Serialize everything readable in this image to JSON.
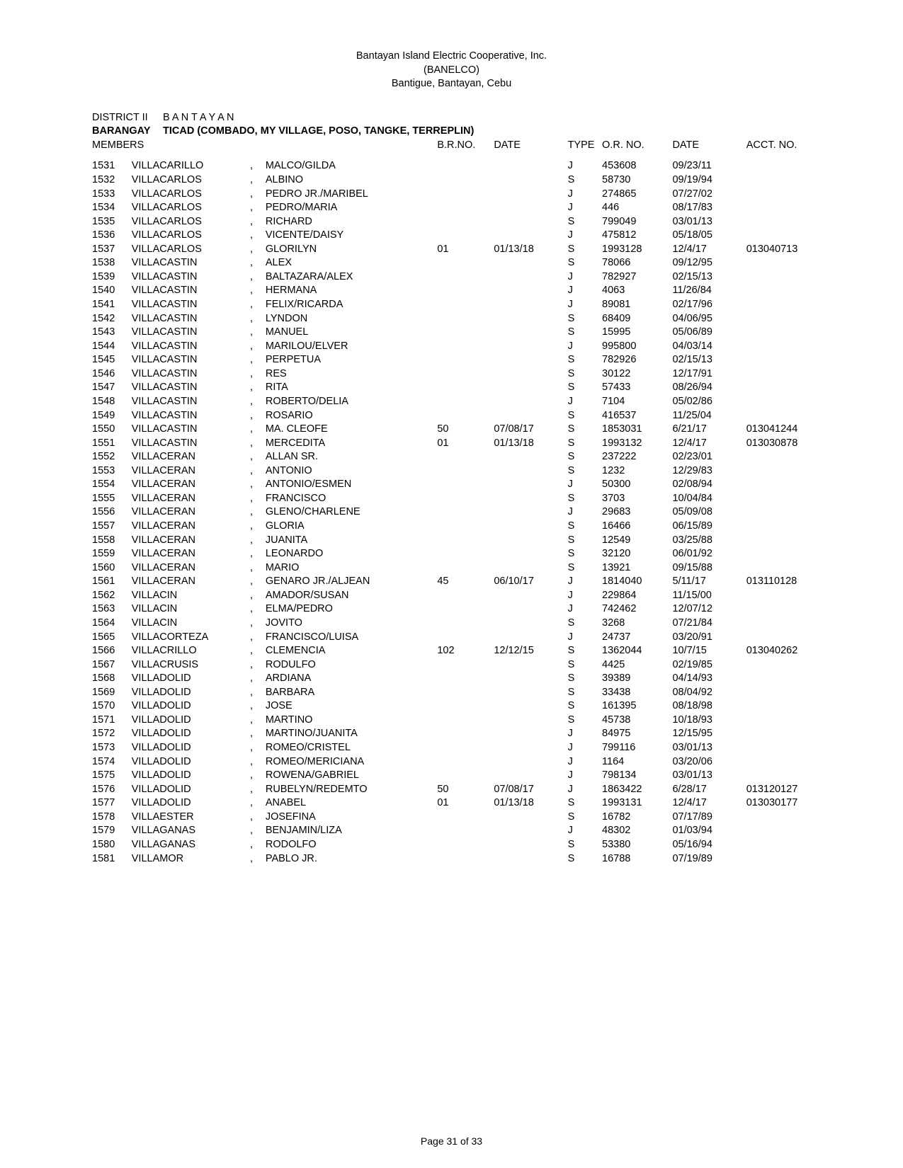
{
  "header": {
    "line1": "Bantayan Island Electric Cooperative, Inc.",
    "line2": "(BANELCO)",
    "line3": "Bantigue, Bantayan, Cebu"
  },
  "meta": {
    "district_label": "DISTRICT II",
    "district_value": "B A N T A Y A N",
    "barangay_label": "BARANGAY",
    "barangay_value": "TICAD (COMBADO, MY VILLAGE, POSO, TANGKE, TERREPLIN)",
    "members_label": "MEMBERS"
  },
  "columns": {
    "brno": "B.R.NO.",
    "date": "DATE",
    "type": "TYPE",
    "orno": "O.R. NO.",
    "date2": "DATE",
    "acct": "ACCT. NO."
  },
  "rows": [
    {
      "idx": "1531",
      "last": "VILLACARILLO",
      "first": "MALCO/GILDA",
      "brno": "",
      "date1": "",
      "type": "J",
      "orno": "453608",
      "date2": "09/23/11",
      "acct": ""
    },
    {
      "idx": "1532",
      "last": "VILLACARLOS",
      "first": "ALBINO",
      "brno": "",
      "date1": "",
      "type": "S",
      "orno": "58730",
      "date2": "09/19/94",
      "acct": ""
    },
    {
      "idx": "1533",
      "last": "VILLACARLOS",
      "first": "PEDRO JR./MARIBEL",
      "brno": "",
      "date1": "",
      "type": "J",
      "orno": "274865",
      "date2": "07/27/02",
      "acct": ""
    },
    {
      "idx": "1534",
      "last": "VILLACARLOS",
      "first": "PEDRO/MARIA",
      "brno": "",
      "date1": "",
      "type": "J",
      "orno": "446",
      "date2": "08/17/83",
      "acct": ""
    },
    {
      "idx": "1535",
      "last": "VILLACARLOS",
      "first": "RICHARD",
      "brno": "",
      "date1": "",
      "type": "S",
      "orno": "799049",
      "date2": "03/01/13",
      "acct": ""
    },
    {
      "idx": "1536",
      "last": "VILLACARLOS",
      "first": "VICENTE/DAISY",
      "brno": "",
      "date1": "",
      "type": "J",
      "orno": "475812",
      "date2": "05/18/05",
      "acct": ""
    },
    {
      "idx": "1537",
      "last": "VILLACARLOS",
      "first": "GLORILYN",
      "brno": "01",
      "date1": "01/13/18",
      "type": "S",
      "orno": "1993128",
      "date2": "12/4/17",
      "acct": "013040713"
    },
    {
      "idx": "1538",
      "last": "VILLACASTIN",
      "first": "ALEX",
      "brno": "",
      "date1": "",
      "type": "S",
      "orno": "78066",
      "date2": "09/12/95",
      "acct": ""
    },
    {
      "idx": "1539",
      "last": "VILLACASTIN",
      "first": "BALTAZARA/ALEX",
      "brno": "",
      "date1": "",
      "type": "J",
      "orno": "782927",
      "date2": "02/15/13",
      "acct": ""
    },
    {
      "idx": "1540",
      "last": "VILLACASTIN",
      "first": "HERMANA",
      "brno": "",
      "date1": "",
      "type": "J",
      "orno": "4063",
      "date2": "11/26/84",
      "acct": ""
    },
    {
      "idx": "1541",
      "last": "VILLACASTIN",
      "first": "FELIX/RICARDA",
      "brno": "",
      "date1": "",
      "type": "J",
      "orno": "89081",
      "date2": "02/17/96",
      "acct": ""
    },
    {
      "idx": "1542",
      "last": "VILLACASTIN",
      "first": "LYNDON",
      "brno": "",
      "date1": "",
      "type": "S",
      "orno": "68409",
      "date2": "04/06/95",
      "acct": ""
    },
    {
      "idx": "1543",
      "last": "VILLACASTIN",
      "first": "MANUEL",
      "brno": "",
      "date1": "",
      "type": "S",
      "orno": "15995",
      "date2": "05/06/89",
      "acct": ""
    },
    {
      "idx": "1544",
      "last": "VILLACASTIN",
      "first": "MARILOU/ELVER",
      "brno": "",
      "date1": "",
      "type": "J",
      "orno": "995800",
      "date2": "04/03/14",
      "acct": ""
    },
    {
      "idx": "1545",
      "last": "VILLACASTIN",
      "first": "PERPETUA",
      "brno": "",
      "date1": "",
      "type": "S",
      "orno": "782926",
      "date2": "02/15/13",
      "acct": ""
    },
    {
      "idx": "1546",
      "last": "VILLACASTIN",
      "first": "RES",
      "brno": "",
      "date1": "",
      "type": "S",
      "orno": "30122",
      "date2": "12/17/91",
      "acct": ""
    },
    {
      "idx": "1547",
      "last": "VILLACASTIN",
      "first": "RITA",
      "brno": "",
      "date1": "",
      "type": "S",
      "orno": "57433",
      "date2": "08/26/94",
      "acct": ""
    },
    {
      "idx": "1548",
      "last": "VILLACASTIN",
      "first": "ROBERTO/DELIA",
      "brno": "",
      "date1": "",
      "type": "J",
      "orno": "7104",
      "date2": "05/02/86",
      "acct": ""
    },
    {
      "idx": "1549",
      "last": "VILLACASTIN",
      "first": "ROSARIO",
      "brno": "",
      "date1": "",
      "type": "S",
      "orno": "416537",
      "date2": "11/25/04",
      "acct": ""
    },
    {
      "idx": "1550",
      "last": "VILLACASTIN",
      "first": "MA. CLEOFE",
      "brno": "50",
      "date1": "07/08/17",
      "type": "S",
      "orno": "1853031",
      "date2": "6/21/17",
      "acct": "013041244"
    },
    {
      "idx": "1551",
      "last": "VILLACASTIN",
      "first": "MERCEDITA",
      "brno": "01",
      "date1": "01/13/18",
      "type": "S",
      "orno": "1993132",
      "date2": "12/4/17",
      "acct": "013030878"
    },
    {
      "idx": "1552",
      "last": "VILLACERAN",
      "first": "ALLAN SR.",
      "brno": "",
      "date1": "",
      "type": "S",
      "orno": "237222",
      "date2": "02/23/01",
      "acct": ""
    },
    {
      "idx": "1553",
      "last": "VILLACERAN",
      "first": "ANTONIO",
      "brno": "",
      "date1": "",
      "type": "S",
      "orno": "1232",
      "date2": "12/29/83",
      "acct": ""
    },
    {
      "idx": "1554",
      "last": "VILLACERAN",
      "first": "ANTONIO/ESMEN",
      "brno": "",
      "date1": "",
      "type": "J",
      "orno": "50300",
      "date2": "02/08/94",
      "acct": ""
    },
    {
      "idx": "1555",
      "last": "VILLACERAN",
      "first": "FRANCISCO",
      "brno": "",
      "date1": "",
      "type": "S",
      "orno": "3703",
      "date2": "10/04/84",
      "acct": ""
    },
    {
      "idx": "1556",
      "last": "VILLACERAN",
      "first": "GLENO/CHARLENE",
      "brno": "",
      "date1": "",
      "type": "J",
      "orno": "29683",
      "date2": "05/09/08",
      "acct": ""
    },
    {
      "idx": "1557",
      "last": "VILLACERAN",
      "first": "GLORIA",
      "brno": "",
      "date1": "",
      "type": "S",
      "orno": "16466",
      "date2": "06/15/89",
      "acct": ""
    },
    {
      "idx": "1558",
      "last": "VILLACERAN",
      "first": "JUANITA",
      "brno": "",
      "date1": "",
      "type": "S",
      "orno": "12549",
      "date2": "03/25/88",
      "acct": ""
    },
    {
      "idx": "1559",
      "last": "VILLACERAN",
      "first": "LEONARDO",
      "brno": "",
      "date1": "",
      "type": "S",
      "orno": "32120",
      "date2": "06/01/92",
      "acct": ""
    },
    {
      "idx": "1560",
      "last": "VILLACERAN",
      "first": "MARIO",
      "brno": "",
      "date1": "",
      "type": "S",
      "orno": "13921",
      "date2": "09/15/88",
      "acct": ""
    },
    {
      "idx": "1561",
      "last": "VILLACERAN",
      "first": "GENARO JR./ALJEAN",
      "brno": "45",
      "date1": "06/10/17",
      "type": "J",
      "orno": "1814040",
      "date2": "5/11/17",
      "acct": "013110128"
    },
    {
      "idx": "1562",
      "last": "VILLACIN",
      "first": "AMADOR/SUSAN",
      "brno": "",
      "date1": "",
      "type": "J",
      "orno": "229864",
      "date2": "11/15/00",
      "acct": ""
    },
    {
      "idx": "1563",
      "last": "VILLACIN",
      "first": "ELMA/PEDRO",
      "brno": "",
      "date1": "",
      "type": "J",
      "orno": "742462",
      "date2": "12/07/12",
      "acct": ""
    },
    {
      "idx": "1564",
      "last": "VILLACIN",
      "first": "JOVITO",
      "brno": "",
      "date1": "",
      "type": "S",
      "orno": "3268",
      "date2": "07/21/84",
      "acct": ""
    },
    {
      "idx": "1565",
      "last": "VILLACORTEZA",
      "first": "FRANCISCO/LUISA",
      "brno": "",
      "date1": "",
      "type": "J",
      "orno": "24737",
      "date2": "03/20/91",
      "acct": ""
    },
    {
      "idx": "1566",
      "last": "VILLACRILLO",
      "first": "CLEMENCIA",
      "brno": "102",
      "date1": "12/12/15",
      "type": "S",
      "orno": "1362044",
      "date2": "10/7/15",
      "acct": "013040262"
    },
    {
      "idx": "1567",
      "last": "VILLACRUSIS",
      "first": "RODULFO",
      "brno": "",
      "date1": "",
      "type": "S",
      "orno": "4425",
      "date2": "02/19/85",
      "acct": ""
    },
    {
      "idx": "1568",
      "last": "VILLADOLID",
      "first": "ARDIANA",
      "brno": "",
      "date1": "",
      "type": "S",
      "orno": "39389",
      "date2": "04/14/93",
      "acct": ""
    },
    {
      "idx": "1569",
      "last": "VILLADOLID",
      "first": "BARBARA",
      "brno": "",
      "date1": "",
      "type": "S",
      "orno": "33438",
      "date2": "08/04/92",
      "acct": ""
    },
    {
      "idx": "1570",
      "last": "VILLADOLID",
      "first": "JOSE",
      "brno": "",
      "date1": "",
      "type": "S",
      "orno": "161395",
      "date2": "08/18/98",
      "acct": ""
    },
    {
      "idx": "1571",
      "last": "VILLADOLID",
      "first": "MARTINO",
      "brno": "",
      "date1": "",
      "type": "S",
      "orno": "45738",
      "date2": "10/18/93",
      "acct": ""
    },
    {
      "idx": "1572",
      "last": "VILLADOLID",
      "first": "MARTINO/JUANITA",
      "brno": "",
      "date1": "",
      "type": "J",
      "orno": "84975",
      "date2": "12/15/95",
      "acct": ""
    },
    {
      "idx": "1573",
      "last": "VILLADOLID",
      "first": "ROMEO/CRISTEL",
      "brno": "",
      "date1": "",
      "type": "J",
      "orno": "799116",
      "date2": "03/01/13",
      "acct": ""
    },
    {
      "idx": "1574",
      "last": "VILLADOLID",
      "first": "ROMEO/MERICIANA",
      "brno": "",
      "date1": "",
      "type": "J",
      "orno": "1164",
      "date2": "03/20/06",
      "acct": ""
    },
    {
      "idx": "1575",
      "last": "VILLADOLID",
      "first": "ROWENA/GABRIEL",
      "brno": "",
      "date1": "",
      "type": "J",
      "orno": "798134",
      "date2": "03/01/13",
      "acct": ""
    },
    {
      "idx": "1576",
      "last": "VILLADOLID",
      "first": "RUBELYN/REDEMTO",
      "brno": "50",
      "date1": "07/08/17",
      "type": "J",
      "orno": "1863422",
      "date2": "6/28/17",
      "acct": "013120127"
    },
    {
      "idx": "1577",
      "last": "VILLADOLID",
      "first": "ANABEL",
      "brno": "01",
      "date1": "01/13/18",
      "type": "S",
      "orno": "1993131",
      "date2": "12/4/17",
      "acct": "013030177"
    },
    {
      "idx": "1578",
      "last": "VILLAESTER",
      "first": "JOSEFINA",
      "brno": "",
      "date1": "",
      "type": "S",
      "orno": "16782",
      "date2": "07/17/89",
      "acct": ""
    },
    {
      "idx": "1579",
      "last": "VILLAGANAS",
      "first": "BENJAMIN/LIZA",
      "brno": "",
      "date1": "",
      "type": "J",
      "orno": "48302",
      "date2": "01/03/94",
      "acct": ""
    },
    {
      "idx": "1580",
      "last": "VILLAGANAS",
      "first": "RODOLFO",
      "brno": "",
      "date1": "",
      "type": "S",
      "orno": "53380",
      "date2": "05/16/94",
      "acct": ""
    },
    {
      "idx": "1581",
      "last": "VILLAMOR",
      "first": "PABLO JR.",
      "brno": "",
      "date1": "",
      "type": "S",
      "orno": "16788",
      "date2": "07/19/89",
      "acct": ""
    }
  ],
  "footer": "Page 31 of 33"
}
